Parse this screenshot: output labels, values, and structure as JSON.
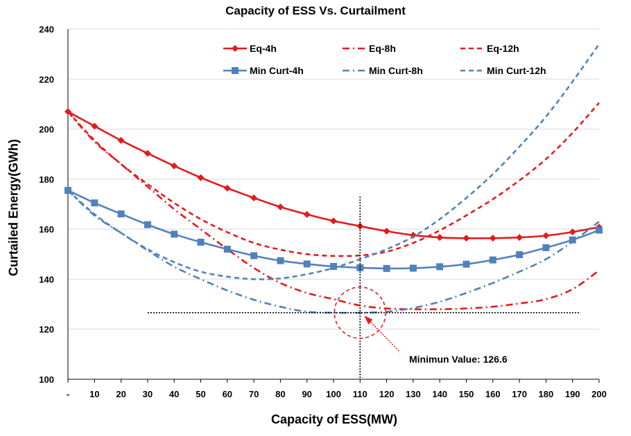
{
  "chart_data": {
    "type": "line",
    "title": "Capacity of ESS Vs. Curtailment",
    "xlabel": "Capacity of ESS(MW)",
    "ylabel": "Curtailed Energy(GWh)",
    "x": [
      0,
      10,
      20,
      30,
      40,
      50,
      60,
      70,
      80,
      90,
      100,
      110,
      120,
      130,
      140,
      150,
      160,
      170,
      180,
      190,
      200
    ],
    "x_tick_labels": [
      "-",
      "10",
      "20",
      "30",
      "40",
      "50",
      "60",
      "70",
      "80",
      "90",
      "100",
      "110",
      "120",
      "130",
      "140",
      "150",
      "160",
      "170",
      "180",
      "190",
      "200"
    ],
    "ylim": [
      100,
      240
    ],
    "y_ticks": [
      100,
      120,
      140,
      160,
      180,
      200,
      220,
      240
    ],
    "grid": "horizontal",
    "legend_position": "top",
    "series": [
      {
        "name": "Eq-4h",
        "color": "#e41a1c",
        "dash": "solid",
        "marker": "diamond",
        "values": [
          207,
          201.2,
          195.5,
          190.3,
          185.3,
          180.6,
          176.4,
          172.5,
          168.9,
          165.9,
          163.3,
          161.2,
          159.2,
          157.6,
          156.7,
          156.4,
          156.4,
          156.7,
          157.4,
          158.9,
          160.8
        ]
      },
      {
        "name": "Eq-8h",
        "color": "#e41a1c",
        "dash": "dashdot",
        "marker": "none",
        "values": [
          207,
          195,
          186,
          177,
          168,
          160,
          152,
          144.5,
          138.5,
          134.5,
          132,
          129.5,
          128.3,
          128,
          128,
          128.3,
          129,
          130.3,
          132,
          136,
          143.5
        ]
      },
      {
        "name": "Eq-12h",
        "color": "#e41a1c",
        "dash": "dash",
        "marker": "none",
        "values": [
          207,
          195.5,
          186,
          178,
          170.5,
          164,
          158.8,
          154.5,
          151.8,
          150,
          149.3,
          149.5,
          151,
          154.5,
          159.5,
          165.5,
          172,
          179.5,
          188,
          198.5,
          210.5
        ]
      },
      {
        "name": "Min Curt-4h",
        "color": "#4f81bd",
        "dash": "solid",
        "marker": "square",
        "values": [
          175.5,
          170.5,
          166.1,
          161.8,
          158,
          154.8,
          152,
          149.4,
          147.4,
          146.1,
          145.1,
          144.6,
          144.3,
          144.4,
          145,
          146,
          147.7,
          149.8,
          152.6,
          155.7,
          159.6
        ]
      },
      {
        "name": "Min Curt-8h",
        "color": "#4f81bd",
        "dash": "dashdot",
        "marker": "none",
        "values": [
          175.5,
          165.5,
          158.5,
          151.5,
          145,
          140,
          135.5,
          131.8,
          129,
          127,
          126.6,
          126.6,
          127,
          128.5,
          131,
          134.5,
          138.5,
          143,
          148,
          155,
          163
        ]
      },
      {
        "name": "Min Curt-12h",
        "color": "#4f81bd",
        "dash": "dash",
        "marker": "none",
        "values": [
          175.5,
          166,
          158.5,
          152,
          146.8,
          143,
          141,
          140,
          140.3,
          142,
          144.5,
          148,
          152,
          157,
          164,
          172.5,
          182,
          193,
          205,
          219,
          234
        ]
      }
    ],
    "annotations": {
      "minimum_label": "Minimun Value: 126.6",
      "vertical_marker_x": 110,
      "horizontal_marker_y": 126.6,
      "circle_center": [
        110,
        126.6
      ]
    }
  }
}
